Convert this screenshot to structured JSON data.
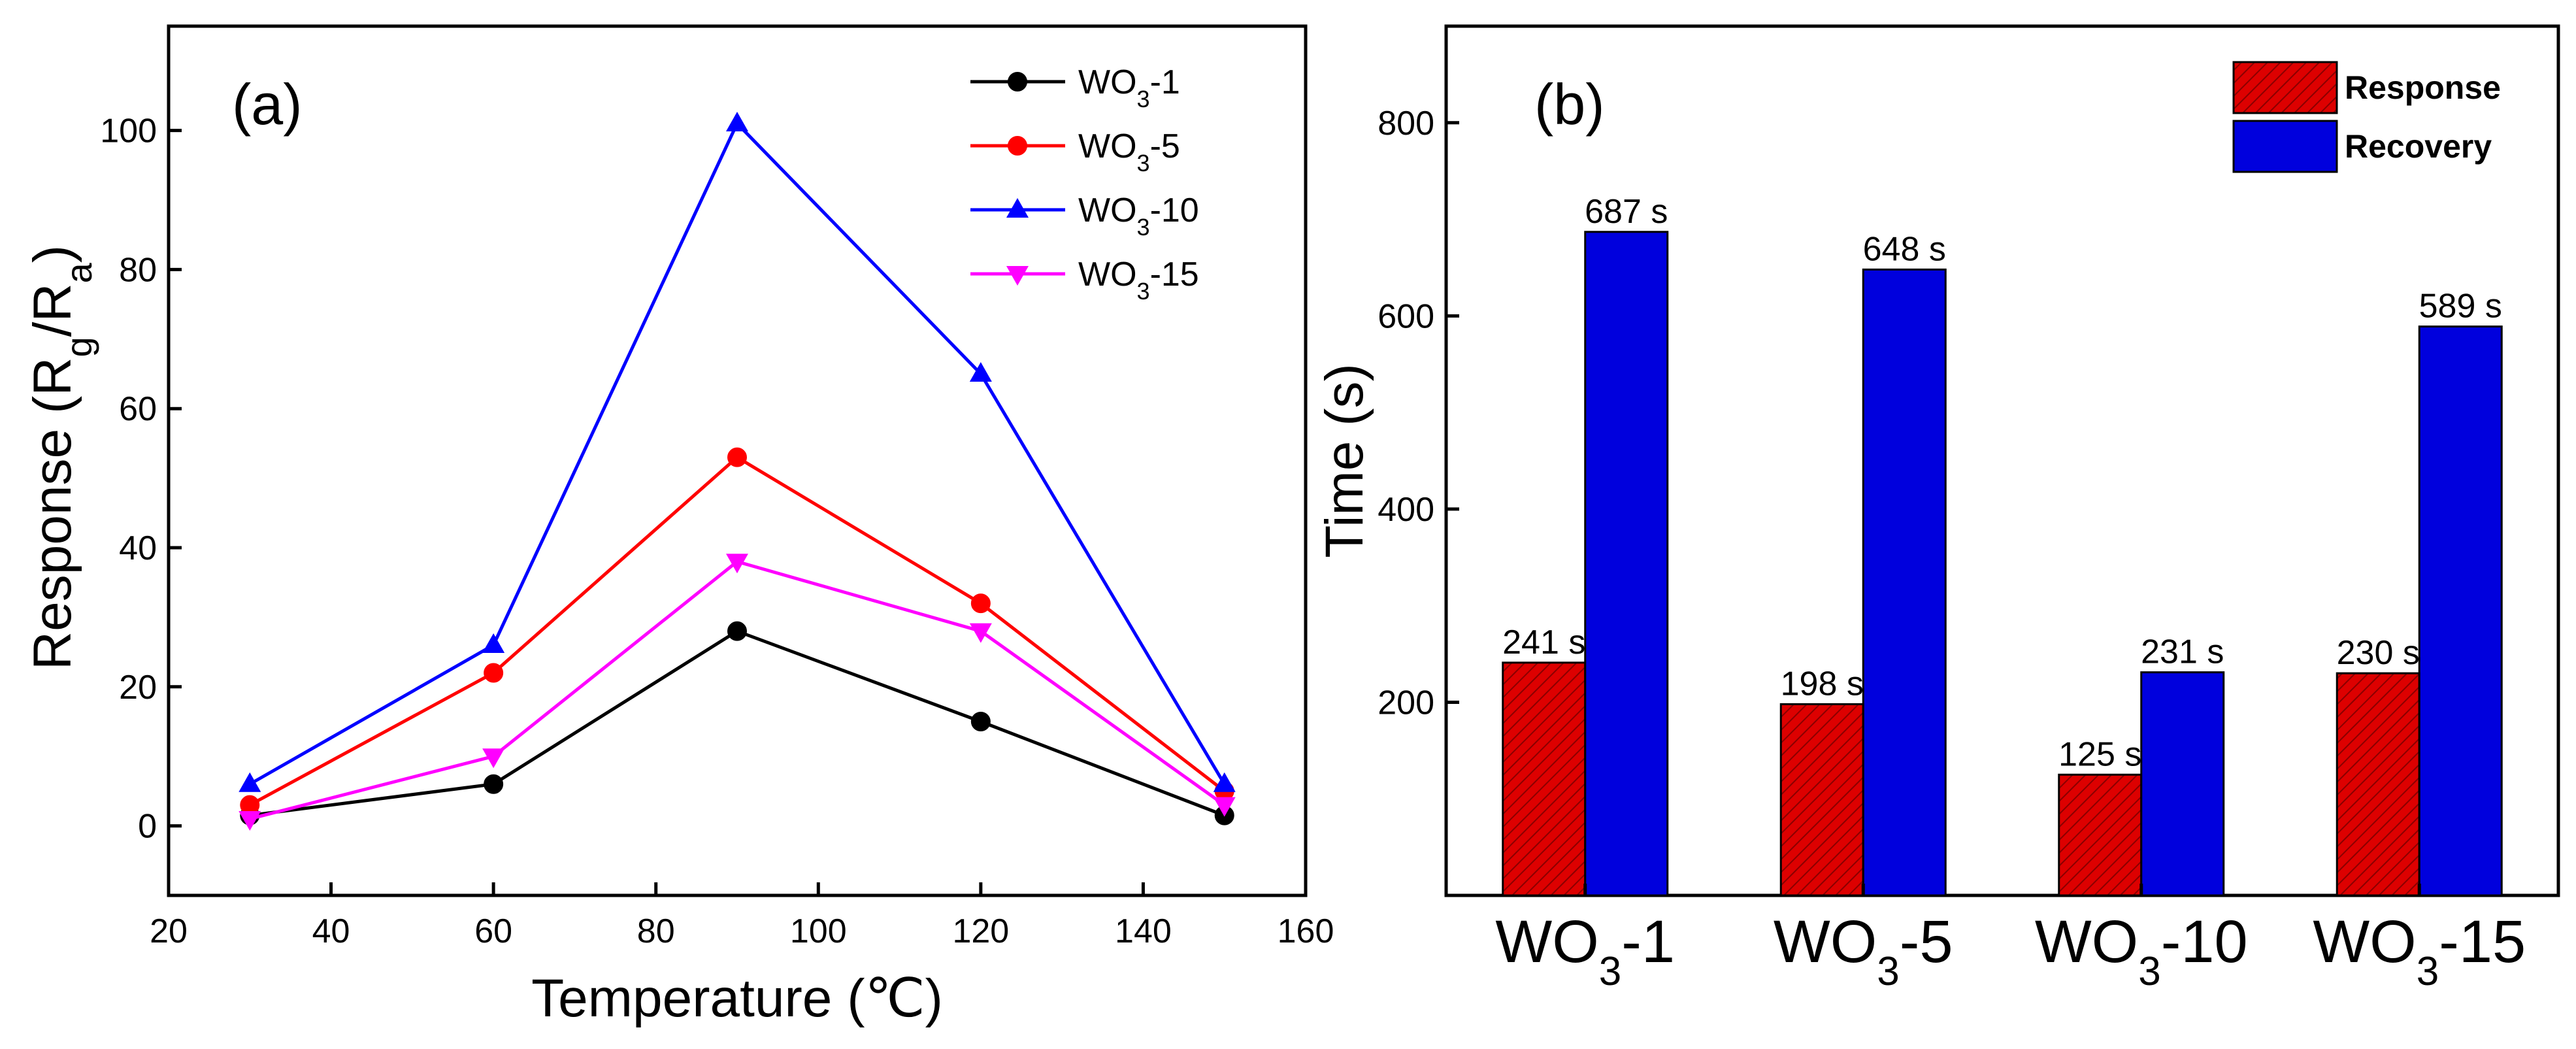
{
  "chart_data": [
    {
      "type": "line",
      "panel_label": "(a)",
      "xlabel": "Temperature (℃)",
      "ylabel_parts": [
        "Response (R",
        "g",
        "/R",
        "a",
        ")"
      ],
      "x": [
        30,
        60,
        90,
        120,
        150
      ],
      "xlim": [
        20,
        160
      ],
      "ylim": [
        -10,
        115
      ],
      "xticks": [
        "20",
        "40",
        "60",
        "80",
        "100",
        "120",
        "140",
        "160"
      ],
      "yticks": [
        "0",
        "20",
        "40",
        "60",
        "80",
        "100"
      ],
      "series": [
        {
          "name": "WO3-1",
          "base": "WO",
          "sub": "3",
          "suffix": "-1",
          "color": "#000000",
          "marker": "circle",
          "values": [
            1.5,
            6,
            28,
            15,
            1.5
          ]
        },
        {
          "name": "WO3-5",
          "base": "WO",
          "sub": "3",
          "suffix": "-5",
          "color": "#ff0000",
          "marker": "circle",
          "values": [
            3,
            22,
            53,
            32,
            5
          ]
        },
        {
          "name": "WO3-10",
          "base": "WO",
          "sub": "3",
          "suffix": "-10",
          "color": "#0000ff",
          "marker": "triangle-up",
          "values": [
            6,
            26,
            101,
            65,
            6
          ]
        },
        {
          "name": "WO3-15",
          "base": "WO",
          "sub": "3",
          "suffix": "-15",
          "color": "#ff00ff",
          "marker": "triangle-down",
          "values": [
            1,
            10,
            38,
            28,
            3
          ]
        }
      ],
      "legend_position": "top-right"
    },
    {
      "type": "bar",
      "panel_label": "(b)",
      "ylabel": "Time (s)",
      "ylim": [
        0,
        900
      ],
      "yticks": [
        "200",
        "400",
        "600",
        "800"
      ],
      "categories": [
        {
          "name": "WO3-1",
          "base": "WO",
          "sub": "3",
          "suffix": "-1"
        },
        {
          "name": "WO3-5",
          "base": "WO",
          "sub": "3",
          "suffix": "-5"
        },
        {
          "name": "WO3-10",
          "base": "WO",
          "sub": "3",
          "suffix": "-10"
        },
        {
          "name": "WO3-15",
          "base": "WO",
          "sub": "3",
          "suffix": "-15"
        }
      ],
      "series": [
        {
          "name": "Response",
          "color": "#dd0000",
          "values": [
            241,
            198,
            125,
            230
          ],
          "labels": [
            "241 s",
            "198 s",
            "125 s",
            "230 s"
          ]
        },
        {
          "name": "Recovery",
          "color": "#0000dd",
          "values": [
            687,
            648,
            231,
            589
          ],
          "labels": [
            "687 s",
            "648 s",
            "231 s",
            "589 s"
          ]
        }
      ],
      "legend_position": "top-right"
    }
  ]
}
